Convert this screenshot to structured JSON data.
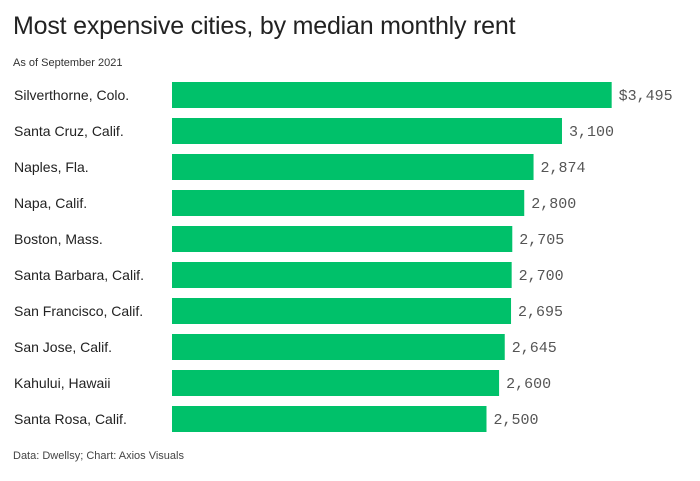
{
  "title": "Most expensive cities, by median monthly rent",
  "subtitle": "As of September 2021",
  "source": "Data: Dwellsy; Chart: Axios Visuals",
  "colors": {
    "bar": "#00c16a",
    "text": "#222222",
    "value_text": "#555555"
  },
  "chart_data": {
    "type": "bar",
    "orientation": "horizontal",
    "categories": [
      "Silverthorne, Colo.",
      "Santa Cruz, Calif.",
      "Naples, Fla.",
      "Napa, Calif.",
      "Boston, Mass.",
      "Santa Barbara, Calif.",
      "San Francisco, Calif.",
      "San Jose, Calif.",
      "Kahului, Hawaii",
      "Santa Rosa, Calif."
    ],
    "values": [
      3495,
      3100,
      2874,
      2800,
      2705,
      2700,
      2695,
      2645,
      2600,
      2500
    ],
    "value_labels": [
      "$3,495",
      "3,100",
      "2,874",
      "2,800",
      "2,705",
      "2,700",
      "2,695",
      "2,645",
      "2,600",
      "2,500"
    ],
    "grid": false,
    "legend": "none"
  }
}
